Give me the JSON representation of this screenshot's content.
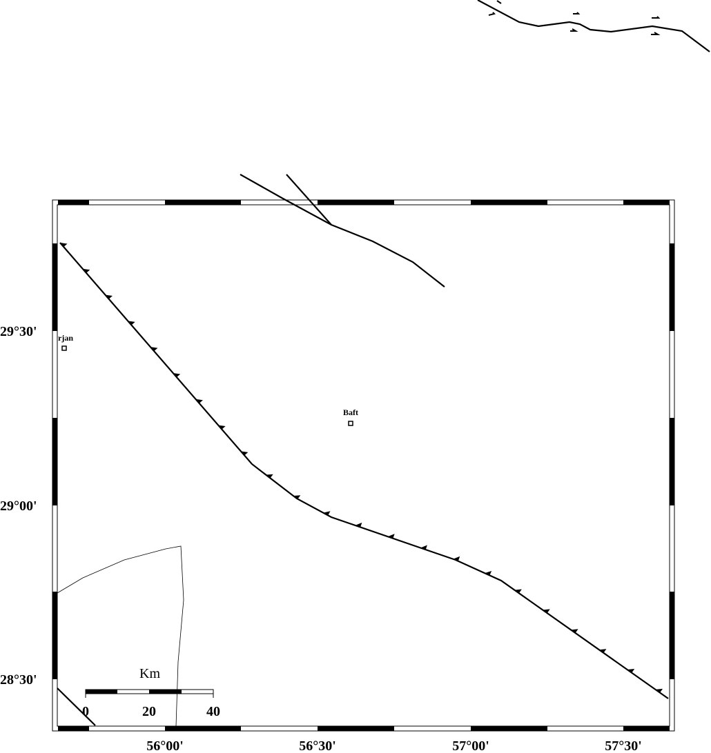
{
  "map": {
    "lat_labels": [
      "29°30'",
      "29°00'",
      "28°30'"
    ],
    "lon_labels": [
      "56°00'",
      "56°30'",
      "57°00'",
      "57°30'"
    ],
    "places": [
      {
        "name": "rjan"
      },
      {
        "name": "Baft"
      }
    ],
    "scale_bar": {
      "unit": "Km",
      "labels": [
        0,
        20,
        40
      ]
    }
  }
}
